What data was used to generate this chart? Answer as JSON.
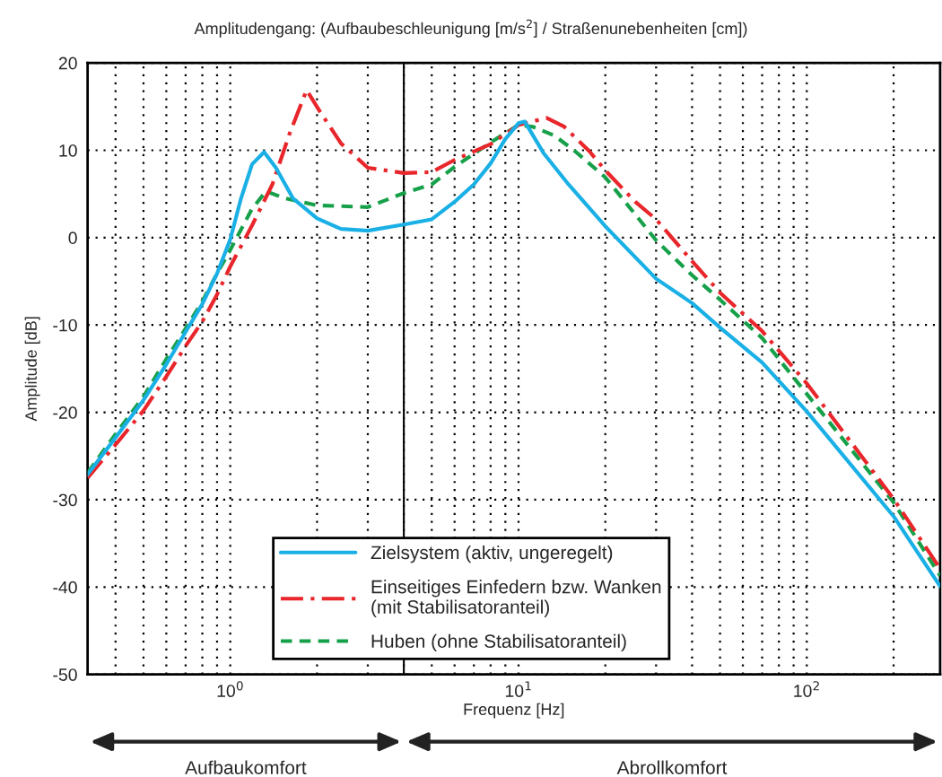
{
  "chart_data": {
    "type": "line",
    "title": "Amplitudengang: (Aufbaubeschleunigung [m/s$^{2}$] / Straßenunebenheiten [cm])",
    "xlabel": "Frequenz [Hz]",
    "ylabel": "Amplitude [dB]",
    "log": "x",
    "xlim": [
      0.32,
      290
    ],
    "ylim": [
      -50,
      20
    ],
    "xticks": [
      {
        "value": 0.4,
        "label": null
      },
      {
        "value": 0.5,
        "label": null
      },
      {
        "value": 0.6,
        "label": null
      },
      {
        "value": 0.7,
        "label": null
      },
      {
        "value": 0.8,
        "label": null
      },
      {
        "value": 0.9,
        "label": null
      },
      {
        "value": 1,
        "label": "10$^{0}$"
      },
      {
        "value": 2,
        "label": null
      },
      {
        "value": 3,
        "label": null
      },
      {
        "value": 4,
        "label": null
      },
      {
        "value": 5,
        "label": null
      },
      {
        "value": 6,
        "label": null
      },
      {
        "value": 7,
        "label": null
      },
      {
        "value": 8,
        "label": null
      },
      {
        "value": 9,
        "label": null
      },
      {
        "value": 10,
        "label": "10$^{1}$"
      },
      {
        "value": 20,
        "label": null
      },
      {
        "value": 30,
        "label": null
      },
      {
        "value": 40,
        "label": null
      },
      {
        "value": 50,
        "label": null
      },
      {
        "value": 60,
        "label": null
      },
      {
        "value": 70,
        "label": null
      },
      {
        "value": 80,
        "label": null
      },
      {
        "value": 90,
        "label": null
      },
      {
        "value": 100,
        "label": "10$^{2}$"
      },
      {
        "value": 200,
        "label": null
      }
    ],
    "yticks": [
      -50,
      -40,
      -30,
      -20,
      -10,
      0,
      10,
      20
    ],
    "grid": true,
    "legend": "bottom",
    "ref_lines": [
      {
        "axis": "x",
        "value": 4,
        "label": null,
        "color": "#000000",
        "line_style": "solid"
      }
    ],
    "annotations": [
      "Aufbaukomfort",
      "Abrollkomfort"
    ],
    "series": [
      {
        "name": "Zielsystem (aktiv, ungeregelt)",
        "color": "#1ab0e6",
        "line_style": "solid",
        "x": [
          0.32,
          0.4,
          0.5,
          0.6,
          0.7,
          0.8,
          0.9,
          1.0,
          1.09,
          1.19,
          1.31,
          1.44,
          1.65,
          2.0,
          2.42,
          3.0,
          4.0,
          5.0,
          6.0,
          7.0,
          8.0,
          9.0,
          10.0,
          10.5,
          12.2,
          14.9,
          20,
          30,
          40,
          50,
          70,
          100,
          200,
          290
        ],
        "values": [
          -27.1,
          -22.9,
          -18.6,
          -14.5,
          -10.8,
          -7.6,
          -4.1,
          -0.2,
          4.5,
          8.4,
          9.8,
          8.0,
          4.5,
          2.2,
          1.0,
          0.8,
          1.5,
          2.1,
          4.1,
          6.1,
          8.5,
          11.3,
          13.1,
          13.3,
          9.7,
          6.1,
          1.3,
          -4.7,
          -7.5,
          -10.3,
          -14.3,
          -19.9,
          -31.9,
          -39.9
        ]
      },
      {
        "name": "Einseitiges Einfedern bzw. Wanken\n(mit Stabilisatoranteil)",
        "color": "#e8262b",
        "line_style": "dashdot",
        "x": [
          0.32,
          0.4,
          0.5,
          0.6,
          0.7,
          0.8,
          0.9,
          1.0,
          1.19,
          1.4,
          1.61,
          1.84,
          2.06,
          2.42,
          3.0,
          4.0,
          5.0,
          6.0,
          8.0,
          10.0,
          12.5,
          14.4,
          17.6,
          20,
          25.4,
          30,
          40,
          50,
          70,
          100,
          200,
          290
        ],
        "values": [
          -27.5,
          -23.7,
          -19.8,
          -15.9,
          -12.4,
          -9.6,
          -6.5,
          -3.3,
          1.4,
          6.1,
          12.0,
          16.9,
          14.3,
          10.8,
          8.0,
          7.4,
          7.5,
          8.9,
          10.7,
          12.9,
          13.7,
          12.7,
          9.9,
          7.7,
          4.1,
          2.1,
          -2.7,
          -6.3,
          -10.7,
          -16.7,
          -29.9,
          -37.9
        ]
      },
      {
        "name": "Huben (ohne Stabilisatoranteil)",
        "color": "#17a04a",
        "line_style": "dashed",
        "x": [
          0.32,
          0.4,
          0.5,
          0.6,
          0.7,
          0.8,
          0.9,
          1.0,
          1.19,
          1.33,
          1.55,
          2.0,
          3.0,
          4.0,
          5.0,
          6.0,
          8.0,
          10.0,
          11.2,
          13.3,
          15.7,
          20,
          30,
          40,
          50,
          70,
          100,
          200,
          290
        ],
        "values": [
          -26.9,
          -22.5,
          -18.2,
          -13.9,
          -10.4,
          -7.3,
          -4.1,
          -1.4,
          3.3,
          5.3,
          4.5,
          3.7,
          3.5,
          5.1,
          6.1,
          8.1,
          10.9,
          12.9,
          12.7,
          11.7,
          9.9,
          6.9,
          -0.3,
          -4.3,
          -7.1,
          -11.5,
          -17.9,
          -30.3,
          -38.7
        ]
      }
    ]
  }
}
